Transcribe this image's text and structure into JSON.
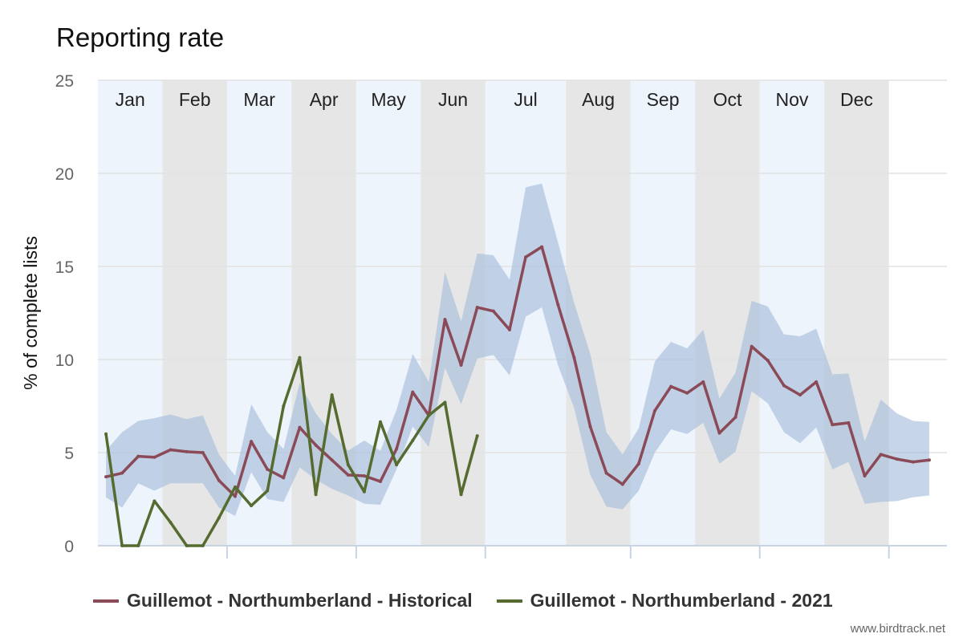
{
  "chart_data": {
    "type": "line",
    "title": "Reporting rate",
    "ylabel": "% of complete lists",
    "xlabel": "",
    "ylim": [
      0,
      25
    ],
    "yticks": [
      0,
      5,
      10,
      15,
      20,
      25
    ],
    "weeks_per_year": 52,
    "months": [
      {
        "label": "Jan",
        "weeks": 4,
        "shade": "light"
      },
      {
        "label": "Feb",
        "weeks": 4,
        "shade": "dark"
      },
      {
        "label": "Mar",
        "weeks": 4,
        "shade": "light"
      },
      {
        "label": "Apr",
        "weeks": 4,
        "shade": "dark"
      },
      {
        "label": "May",
        "weeks": 4,
        "shade": "light"
      },
      {
        "label": "Jun",
        "weeks": 4,
        "shade": "dark"
      },
      {
        "label": "Jul",
        "weeks": 5,
        "shade": "light"
      },
      {
        "label": "Aug",
        "weeks": 4,
        "shade": "dark"
      },
      {
        "label": "Sep",
        "weeks": 4,
        "shade": "light"
      },
      {
        "label": "Oct",
        "weeks": 4,
        "shade": "dark"
      },
      {
        "label": "Nov",
        "weeks": 4,
        "shade": "light"
      },
      {
        "label": "Dec",
        "weeks": 4,
        "shade": "dark"
      }
    ],
    "grid": true,
    "legend_position": "bottom",
    "series": [
      {
        "name": "Guillemot - Northumberland - Historical",
        "color": "#8b4a57",
        "values": [
          3.7,
          3.9,
          4.8,
          4.75,
          5.15,
          5.05,
          5.0,
          3.5,
          2.65,
          5.6,
          4.1,
          3.65,
          6.35,
          5.4,
          4.6,
          3.8,
          3.75,
          3.45,
          5.2,
          8.25,
          7.0,
          12.15,
          9.7,
          12.8,
          12.6,
          11.6,
          15.5,
          16.05,
          12.95,
          10.1,
          6.4,
          3.9,
          3.3,
          4.4,
          7.25,
          8.55,
          8.2,
          8.8,
          6.05,
          6.9,
          10.7,
          9.95,
          8.6,
          8.1,
          8.8,
          6.5,
          6.6,
          3.75,
          4.9,
          4.65,
          4.5,
          4.6
        ],
        "band_upper": [
          5.1,
          6.1,
          6.7,
          6.85,
          7.05,
          6.8,
          7.0,
          4.9,
          3.75,
          7.6,
          6.1,
          5.2,
          8.75,
          7.1,
          6.0,
          5.1,
          5.65,
          5.1,
          7.3,
          10.3,
          8.8,
          14.7,
          12.05,
          15.7,
          15.6,
          14.3,
          19.25,
          19.45,
          16.3,
          13.05,
          10.3,
          6.1,
          4.9,
          6.3,
          9.9,
          10.95,
          10.6,
          11.6,
          7.9,
          9.3,
          13.15,
          12.85,
          11.35,
          11.25,
          11.65,
          9.2,
          9.25,
          5.6,
          7.85,
          7.1,
          6.7,
          6.65
        ],
        "band_lower": [
          2.6,
          2.05,
          3.35,
          2.95,
          3.35,
          3.35,
          3.35,
          2.05,
          1.6,
          3.95,
          2.5,
          2.35,
          4.2,
          3.55,
          3.05,
          2.7,
          2.25,
          2.2,
          4.1,
          6.4,
          5.3,
          9.55,
          7.6,
          10.05,
          10.25,
          9.15,
          12.3,
          12.8,
          9.7,
          7.4,
          3.8,
          2.1,
          1.95,
          2.95,
          5.0,
          6.25,
          6.0,
          6.6,
          4.4,
          5.05,
          8.3,
          7.65,
          6.1,
          5.5,
          6.35,
          4.1,
          4.5,
          2.25,
          2.35,
          2.4,
          2.6,
          2.7
        ]
      },
      {
        "name": "Guillemot - Northumberland - 2021",
        "color": "#556b2f",
        "values": [
          6.0,
          0.0,
          0.0,
          2.4,
          1.25,
          0.0,
          0.0,
          1.5,
          3.15,
          2.15,
          2.95,
          7.5,
          10.1,
          2.75,
          8.1,
          4.35,
          2.9,
          6.65,
          4.35,
          5.65,
          7.0,
          7.7,
          2.75,
          5.9
        ]
      }
    ],
    "band_color": "#a7bfdc"
  },
  "credit": "www.birdtrack.net"
}
